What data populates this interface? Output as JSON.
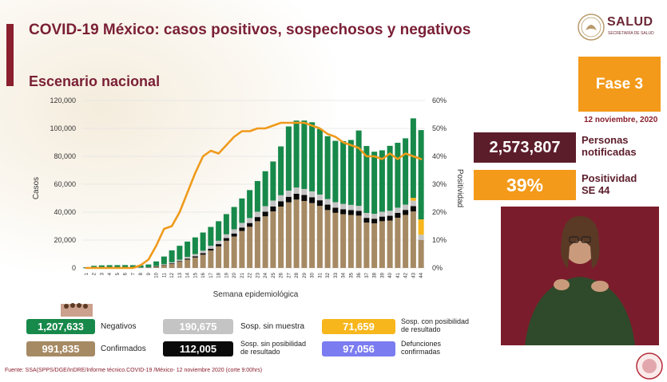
{
  "header": {
    "title": "COVID-19 México: casos positivos, sospechosos y negativos",
    "subtitle": "Escenario nacional"
  },
  "logo": {
    "brand": "SALUD",
    "sub": "SECRETARÍA DE SALUD"
  },
  "phase": {
    "label": "Fase 3",
    "date": "12 noviembre, 2020"
  },
  "kpis": {
    "persons_value": "2,573,807",
    "persons_label_1": "Personas",
    "persons_label_2": "notificadas",
    "positivity_value": "39%",
    "positivity_label_1": "Positividad",
    "positivity_label_2": "SE 44"
  },
  "legend": {
    "negativos_value": "1,207,633",
    "negativos_label": "Negativos",
    "sin_muestra_value": "190,675",
    "sin_muestra_label": "Sosp. sin muestra",
    "con_posibilidad_value": "71,659",
    "con_posibilidad_label_1": "Sosp. con posibilidad",
    "con_posibilidad_label_2": "de resultado",
    "confirmados_value": "991,835",
    "confirmados_label": "Confirmados",
    "sin_posibilidad_value": "112,005",
    "sin_posibilidad_label_1": "Sosp. sin posibilidad",
    "sin_posibilidad_label_2": "de resultado",
    "defunciones_value": "97,056",
    "defunciones_label_1": "Defunciones",
    "defunciones_label_2": "confirmadas"
  },
  "colors": {
    "negativos": "#17894a",
    "sin_muestra": "#c4c4c4",
    "con_posibilidad": "#f7b61c",
    "confirmados": "#a68a64",
    "sin_posibilidad": "#0a0a0a",
    "defunciones": "#7b7cf0",
    "positivity_line": "#ef9a1b",
    "title": "#7a1f35",
    "phase": "#f39a1b"
  },
  "footer": {
    "source": "Fuente: SSA(SPPS/DGE/InDRE/Informe técnico.COVID-19 /México- 12 noviembre 2020 (corte 9:00hrs)"
  },
  "chart_data": {
    "type": "bar",
    "stacked": true,
    "xlabel": "Semana epidemiológica",
    "ylabel": "Casos",
    "y2label": "Positividad",
    "ylim": [
      0,
      120000
    ],
    "y2lim": [
      0,
      60
    ],
    "y_ticks": [
      "0",
      "20,000",
      "40,000",
      "60,000",
      "80,000",
      "100,000",
      "120,000"
    ],
    "y2_ticks": [
      "0%",
      "10%",
      "20%",
      "30%",
      "40%",
      "50%",
      "60%"
    ],
    "categories": [
      "1",
      "2",
      "3",
      "4",
      "5",
      "6",
      "7",
      "8",
      "9",
      "10",
      "11",
      "12",
      "13",
      "14",
      "15",
      "16",
      "17",
      "18",
      "19",
      "20",
      "21",
      "22",
      "23",
      "24",
      "25",
      "26",
      "27",
      "28",
      "29",
      "30",
      "31",
      "32",
      "33",
      "34",
      "35",
      "36",
      "37",
      "38",
      "39",
      "40",
      "41",
      "42",
      "43",
      "44"
    ],
    "series": [
      {
        "name": "Confirmados",
        "values": [
          50,
          80,
          120,
          150,
          160,
          180,
          200,
          250,
          400,
          1000,
          2000,
          3000,
          4500,
          6000,
          7500,
          9500,
          12500,
          15500,
          19500,
          22500,
          26500,
          29500,
          33500,
          37000,
          40500,
          44000,
          47000,
          49000,
          48000,
          46500,
          44500,
          41500,
          39500,
          38500,
          38000,
          37500,
          32500,
          32000,
          33500,
          34000,
          36000,
          38000,
          40500,
          20000
        ]
      },
      {
        "name": "Sosp. sin posibilidad de resultado",
        "values": [
          10,
          10,
          15,
          15,
          20,
          20,
          25,
          30,
          50,
          100,
          200,
          400,
          500,
          700,
          900,
          1100,
          1300,
          1600,
          1900,
          2200,
          2500,
          2700,
          3000,
          3300,
          3600,
          3800,
          4000,
          4200,
          4300,
          4200,
          4000,
          3900,
          3700,
          3600,
          3500,
          3400,
          3400,
          3300,
          3300,
          3400,
          3500,
          3600,
          3800,
          0
        ]
      },
      {
        "name": "Sosp. sin muestra",
        "values": [
          20,
          30,
          40,
          50,
          50,
          60,
          70,
          80,
          150,
          300,
          500,
          700,
          900,
          1200,
          1500,
          1800,
          2100,
          2400,
          2700,
          3000,
          3300,
          3600,
          3800,
          4000,
          4200,
          4300,
          4400,
          4400,
          4300,
          4200,
          4100,
          4000,
          3900,
          3800,
          3700,
          3600,
          3500,
          3500,
          3500,
          3600,
          3700,
          3800,
          3900,
          3800
        ]
      },
      {
        "name": "Sosp. con posibilidad de resultado",
        "values": [
          0,
          0,
          0,
          0,
          0,
          0,
          0,
          0,
          0,
          0,
          0,
          0,
          0,
          0,
          0,
          0,
          0,
          0,
          0,
          0,
          0,
          0,
          0,
          0,
          0,
          0,
          0,
          0,
          0,
          0,
          0,
          0,
          0,
          0,
          0,
          0,
          0,
          0,
          0,
          0,
          0,
          0,
          2000,
          11000
        ]
      },
      {
        "name": "Negativos",
        "values": [
          500,
          1400,
          1700,
          1800,
          1800,
          1800,
          1700,
          1500,
          1900,
          3300,
          5500,
          8500,
          10000,
          11000,
          12000,
          13000,
          13500,
          14000,
          14500,
          16000,
          17500,
          20000,
          22000,
          25000,
          28000,
          35000,
          46000,
          48000,
          49000,
          49500,
          47000,
          45000,
          44000,
          45000,
          46500,
          54000,
          48000,
          44500,
          44000,
          46500,
          46500,
          47500,
          57000,
          64000
        ]
      }
    ],
    "positivity": [
      0,
      0,
      0,
      0,
      0,
      0,
      0,
      1,
      3,
      8,
      14,
      15,
      20,
      27,
      34,
      40,
      42,
      41,
      44,
      47,
      49,
      49,
      50,
      50,
      51,
      52,
      52,
      52,
      52,
      51,
      50,
      48,
      47,
      45,
      44,
      43,
      40,
      40,
      39,
      41,
      39,
      41,
      40,
      39
    ]
  }
}
